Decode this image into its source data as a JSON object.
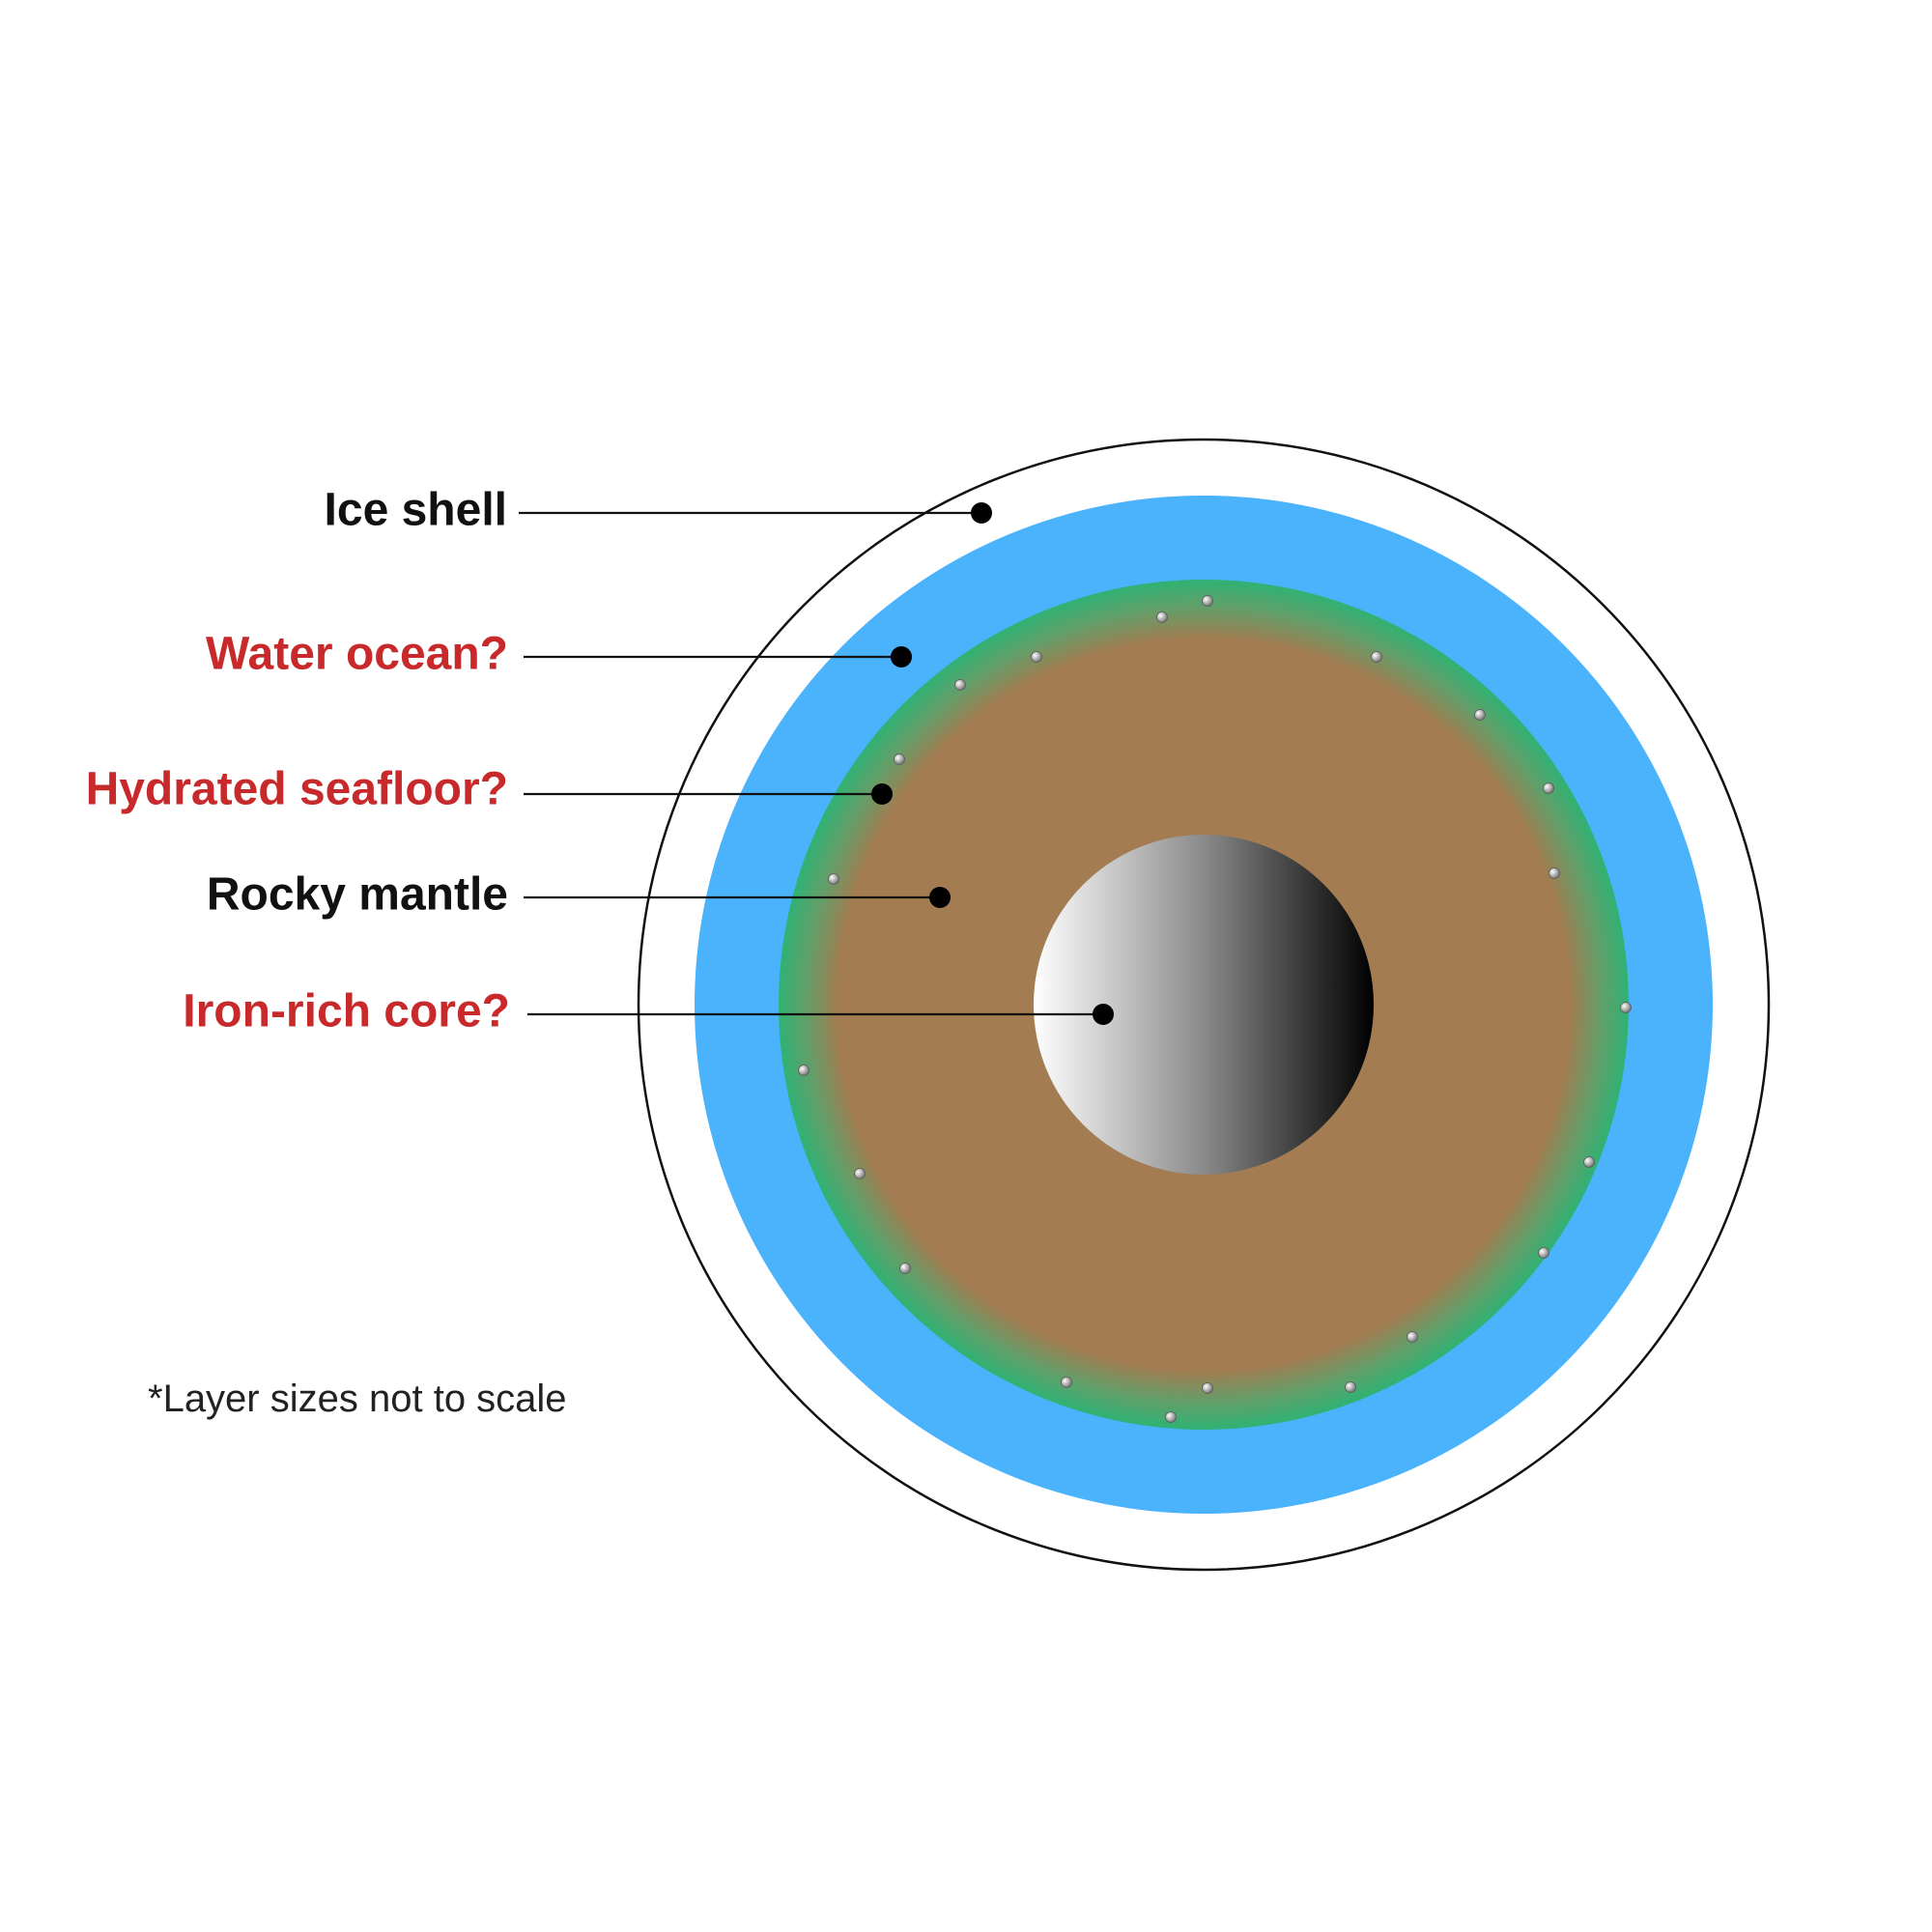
{
  "diagram": {
    "layers": [
      {
        "id": "ice-shell",
        "label": "Ice shell",
        "uncertain": false
      },
      {
        "id": "water-ocean",
        "label": "Water ocean?",
        "uncertain": true
      },
      {
        "id": "hydrated-seafloor",
        "label": "Hydrated seafloor?",
        "uncertain": true
      },
      {
        "id": "rocky-mantle",
        "label": "Rocky mantle",
        "uncertain": false
      },
      {
        "id": "iron-core",
        "label": "Iron-rich core?",
        "uncertain": true
      }
    ],
    "footnote": "*Layer sizes not to scale"
  },
  "colors": {
    "ice_shell_outline": "#111111",
    "ocean": "#4ab3fc",
    "seafloor": "#33b072",
    "mantle": "#a37c51",
    "core_light": "#ffffff",
    "core_dark": "#000000",
    "label_certain": "#111111",
    "label_uncertain": "#c8292b"
  }
}
